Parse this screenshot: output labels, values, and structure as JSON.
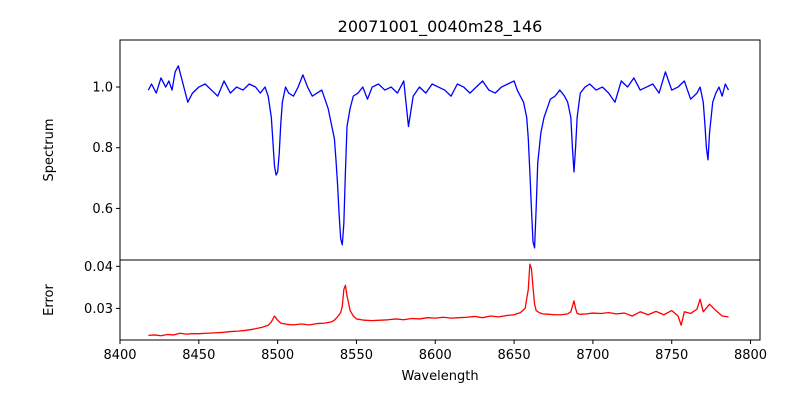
{
  "title": "20071001_0040m28_146",
  "chart_data": [
    {
      "type": "line",
      "panel": "top",
      "title": "20071001_0040m28_146",
      "xlabel": "",
      "ylabel": "Spectrum",
      "xlim": [
        8400,
        8806
      ],
      "ylim": [
        0.43,
        1.155
      ],
      "yticks": [
        "0.6",
        "0.8",
        "1.0"
      ],
      "grid": false,
      "color": "#0000ff",
      "series": [
        {
          "x": [
            8418,
            8420,
            8423,
            8426,
            8429,
            8431,
            8433,
            8435,
            8437,
            8440,
            8443,
            8446,
            8450,
            8454,
            8458,
            8462,
            8466,
            8470,
            8474,
            8478,
            8482,
            8486,
            8489,
            8492,
            8494,
            8496,
            8497,
            8498,
            8499,
            8500,
            8501,
            8502,
            8503,
            8505,
            8507,
            8510,
            8513,
            8516,
            8519,
            8522,
            8525,
            8528,
            8530,
            8532,
            8534,
            8536,
            8537,
            8538,
            8539,
            8540,
            8541,
            8542,
            8543,
            8544,
            8546,
            8548,
            8551,
            8554,
            8557,
            8560,
            8564,
            8568,
            8572,
            8576,
            8580,
            8583,
            8586,
            8590,
            8594,
            8598,
            8602,
            8606,
            8610,
            8614,
            8618,
            8622,
            8626,
            8630,
            8634,
            8638,
            8642,
            8646,
            8650,
            8652,
            8654,
            8656,
            8658,
            8659,
            8660,
            8661,
            8662,
            8663,
            8664,
            8665,
            8667,
            8669,
            8671,
            8673,
            8676,
            8679,
            8682,
            8684,
            8686,
            8687,
            8688,
            8689,
            8690,
            8692,
            8695,
            8698,
            8702,
            8706,
            8710,
            8714,
            8718,
            8722,
            8726,
            8730,
            8734,
            8738,
            8742,
            8746,
            8750,
            8754,
            8758,
            8762,
            8766,
            8768,
            8770,
            8771,
            8772,
            8773,
            8774,
            8776,
            8778,
            8780,
            8782,
            8784,
            8786
          ],
          "y": [
            0.99,
            1.01,
            0.98,
            1.03,
            1.0,
            1.02,
            0.99,
            1.05,
            1.07,
            1.01,
            0.95,
            0.98,
            1.0,
            1.01,
            0.99,
            0.97,
            1.02,
            0.98,
            1.0,
            0.99,
            1.01,
            1.0,
            0.98,
            1.0,
            0.97,
            0.9,
            0.82,
            0.74,
            0.71,
            0.72,
            0.78,
            0.88,
            0.95,
            1.0,
            0.98,
            0.97,
            1.0,
            1.04,
            1.0,
            0.97,
            0.98,
            0.99,
            0.96,
            0.93,
            0.88,
            0.83,
            0.76,
            0.68,
            0.58,
            0.5,
            0.48,
            0.55,
            0.72,
            0.87,
            0.93,
            0.97,
            0.98,
            1.0,
            0.96,
            1.0,
            1.01,
            0.99,
            1.0,
            0.98,
            1.02,
            0.87,
            0.97,
            1.0,
            0.98,
            1.01,
            1.0,
            0.99,
            0.97,
            1.01,
            1.0,
            0.98,
            1.0,
            1.02,
            0.99,
            0.98,
            1.0,
            1.01,
            1.02,
            0.99,
            0.97,
            0.95,
            0.9,
            0.83,
            0.72,
            0.6,
            0.49,
            0.47,
            0.6,
            0.75,
            0.85,
            0.9,
            0.93,
            0.96,
            0.97,
            0.99,
            0.97,
            0.95,
            0.9,
            0.8,
            0.72,
            0.8,
            0.9,
            0.98,
            1.0,
            1.01,
            0.99,
            1.0,
            0.98,
            0.95,
            1.02,
            1.0,
            1.03,
            0.99,
            1.0,
            1.01,
            0.98,
            1.05,
            0.99,
            1.0,
            1.02,
            0.96,
            0.98,
            1.0,
            0.95,
            0.88,
            0.8,
            0.76,
            0.85,
            0.95,
            0.98,
            1.0,
            0.97,
            1.01,
            0.99
          ]
        }
      ]
    },
    {
      "type": "line",
      "panel": "bottom",
      "xlabel": "Wavelength",
      "ylabel": "Error",
      "xlim": [
        8400,
        8806
      ],
      "ylim": [
        0.0225,
        0.0415
      ],
      "xticks": [
        "8400",
        "8450",
        "8500",
        "8550",
        "8600",
        "8650",
        "8700",
        "8750",
        "8800"
      ],
      "yticks": [
        "0.03",
        "0.04"
      ],
      "grid": false,
      "color": "#ff0000",
      "series": [
        {
          "x": [
            8418,
            8422,
            8426,
            8430,
            8434,
            8438,
            8442,
            8446,
            8450,
            8455,
            8460,
            8465,
            8470,
            8475,
            8480,
            8485,
            8490,
            8494,
            8496,
            8498,
            8500,
            8502,
            8506,
            8510,
            8515,
            8520,
            8525,
            8530,
            8534,
            8536,
            8538,
            8540,
            8541,
            8542,
            8543,
            8544,
            8546,
            8548,
            8550,
            8555,
            8560,
            8565,
            8570,
            8575,
            8580,
            8585,
            8590,
            8595,
            8600,
            8605,
            8610,
            8615,
            8620,
            8625,
            8630,
            8635,
            8640,
            8645,
            8650,
            8654,
            8657,
            8659,
            8660,
            8661,
            8662,
            8663,
            8664,
            8666,
            8668,
            8672,
            8676,
            8680,
            8684,
            8686,
            8688,
            8689,
            8690,
            8692,
            8696,
            8700,
            8705,
            8710,
            8715,
            8720,
            8725,
            8730,
            8735,
            8740,
            8745,
            8750,
            8754,
            8756,
            8758,
            8762,
            8766,
            8768,
            8770,
            8774,
            8778,
            8782,
            8786
          ],
          "y": [
            0.0236,
            0.0237,
            0.0235,
            0.0238,
            0.0237,
            0.0241,
            0.0239,
            0.024,
            0.024,
            0.0241,
            0.0242,
            0.0243,
            0.0245,
            0.0246,
            0.0248,
            0.0251,
            0.0255,
            0.026,
            0.0268,
            0.0282,
            0.0272,
            0.0265,
            0.0262,
            0.0261,
            0.0263,
            0.0261,
            0.0264,
            0.0265,
            0.0268,
            0.0272,
            0.028,
            0.029,
            0.0305,
            0.0345,
            0.0355,
            0.033,
            0.0295,
            0.0282,
            0.0275,
            0.0272,
            0.0271,
            0.0272,
            0.0273,
            0.0275,
            0.0273,
            0.0276,
            0.0275,
            0.0278,
            0.0277,
            0.0279,
            0.0277,
            0.0278,
            0.0279,
            0.0281,
            0.0278,
            0.0282,
            0.028,
            0.0283,
            0.0285,
            0.029,
            0.03,
            0.0345,
            0.0405,
            0.0395,
            0.035,
            0.031,
            0.0295,
            0.029,
            0.0287,
            0.0286,
            0.0285,
            0.0285,
            0.0287,
            0.0292,
            0.0318,
            0.03,
            0.0288,
            0.0286,
            0.0287,
            0.0289,
            0.0288,
            0.029,
            0.0287,
            0.0289,
            0.0282,
            0.0292,
            0.0285,
            0.0293,
            0.0285,
            0.0295,
            0.0282,
            0.026,
            0.0292,
            0.0288,
            0.0298,
            0.0322,
            0.0292,
            0.031,
            0.0295,
            0.0282,
            0.028
          ]
        }
      ]
    }
  ]
}
